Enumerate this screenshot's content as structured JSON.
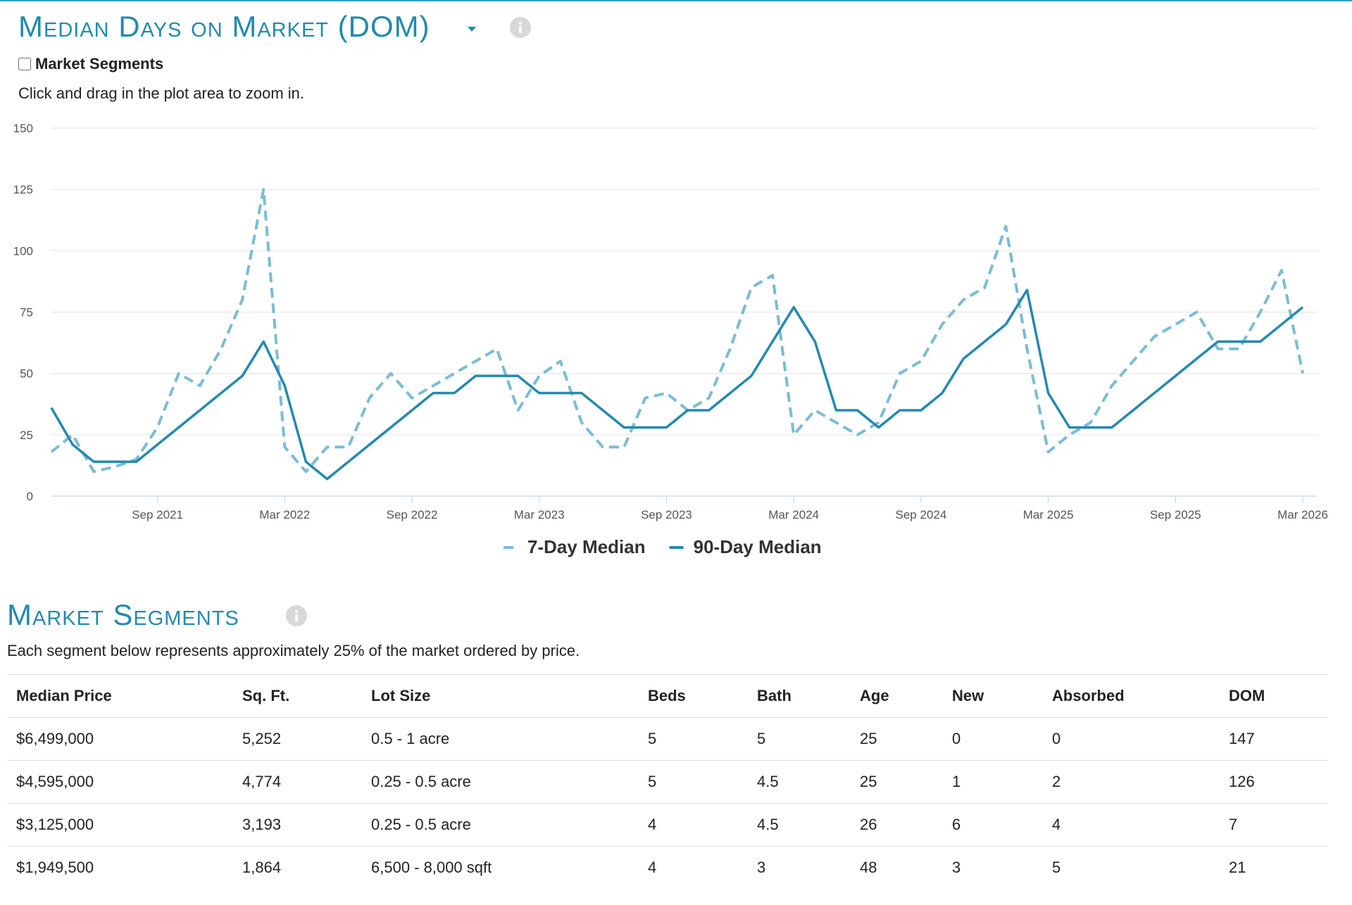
{
  "header": {
    "title": "Median Days on Market (DOM)",
    "checkbox_label": "Market Segments",
    "instruction": "Click and drag in the plot area to zoom in."
  },
  "chart_data": {
    "type": "line",
    "x": [
      "2021-04",
      "2021-05",
      "2021-06",
      "2021-07",
      "2021-08",
      "2021-09",
      "2021-10",
      "2021-11",
      "2021-12",
      "2022-01",
      "2022-02",
      "2022-03",
      "2022-04",
      "2022-05",
      "2022-06",
      "2022-07",
      "2022-08",
      "2022-09",
      "2022-10",
      "2022-11",
      "2022-12",
      "2023-01",
      "2023-02",
      "2023-03",
      "2023-04",
      "2023-05",
      "2023-06",
      "2023-07",
      "2023-08",
      "2023-09",
      "2023-10",
      "2023-11",
      "2023-12",
      "2024-01",
      "2024-02",
      "2024-03",
      "2024-04",
      "2024-05",
      "2024-06",
      "2024-07",
      "2024-08",
      "2024-09",
      "2024-10",
      "2024-11",
      "2024-12",
      "2025-01",
      "2025-02",
      "2025-03",
      "2025-04",
      "2025-05",
      "2025-06",
      "2025-07",
      "2025-08",
      "2025-09",
      "2025-10",
      "2025-11",
      "2025-12",
      "2026-01",
      "2026-02",
      "2026-03"
    ],
    "series": [
      {
        "name": "7-Day Median",
        "color": "#7bbcd5",
        "dashed": true,
        "values": [
          18,
          25,
          10,
          12,
          15,
          28,
          50,
          45,
          60,
          80,
          125,
          20,
          10,
          20,
          20,
          40,
          50,
          40,
          45,
          50,
          55,
          60,
          35,
          49,
          55,
          30,
          20,
          20,
          40,
          42,
          35,
          40,
          60,
          85,
          90,
          25,
          35,
          30,
          25,
          30,
          50,
          55,
          70,
          80,
          85,
          110,
          60,
          18,
          25,
          30,
          45,
          55,
          65,
          70,
          75,
          60,
          60,
          75,
          92,
          50
        ]
      },
      {
        "name": "90-Day Median",
        "color": "#2389b0",
        "dashed": false,
        "values": [
          36,
          21,
          14,
          14,
          14,
          21,
          28,
          35,
          42,
          49,
          63,
          45,
          14,
          7,
          14,
          21,
          28,
          35,
          42,
          42,
          49,
          49,
          49,
          42,
          42,
          42,
          35,
          28,
          28,
          28,
          35,
          35,
          42,
          49,
          63,
          77,
          63,
          35,
          35,
          28,
          35,
          35,
          42,
          56,
          63,
          70,
          84,
          42,
          28,
          28,
          28,
          35,
          42,
          49,
          56,
          63,
          63,
          63,
          70,
          77
        ]
      }
    ],
    "ylim": [
      0,
      150
    ],
    "yticks": [
      0,
      25,
      50,
      75,
      100,
      125,
      150
    ],
    "xticks": [
      {
        "value": "2021-09",
        "label": "Sep 2021"
      },
      {
        "value": "2022-03",
        "label": "Mar 2022"
      },
      {
        "value": "2022-09",
        "label": "Sep 2022"
      },
      {
        "value": "2023-03",
        "label": "Mar 2023"
      },
      {
        "value": "2023-09",
        "label": "Sep 2023"
      },
      {
        "value": "2024-03",
        "label": "Mar 2024"
      },
      {
        "value": "2024-09",
        "label": "Sep 2024"
      },
      {
        "value": "2025-03",
        "label": "Mar 2025"
      },
      {
        "value": "2025-09",
        "label": "Sep 2025"
      },
      {
        "value": "2026-03",
        "label": "Mar 2026"
      }
    ],
    "grid": true
  },
  "segments": {
    "title": "Market Segments",
    "description": "Each segment below represents approximately 25% of the market ordered by price.",
    "table": {
      "headers": [
        "Median Price",
        "Sq. Ft.",
        "Lot Size",
        "Beds",
        "Bath",
        "Age",
        "New",
        "Absorbed",
        "DOM"
      ],
      "rows": [
        [
          "$6,499,000",
          "5,252",
          "0.5 - 1 acre",
          "5",
          "5",
          "25",
          "0",
          "0",
          "147"
        ],
        [
          "$4,595,000",
          "4,774",
          "0.25 - 0.5 acre",
          "5",
          "4.5",
          "25",
          "1",
          "2",
          "126"
        ],
        [
          "$3,125,000",
          "3,193",
          "0.25 - 0.5 acre",
          "4",
          "4.5",
          "26",
          "6",
          "4",
          "7"
        ],
        [
          "$1,949,500",
          "1,864",
          "6,500 - 8,000 sqft",
          "4",
          "3",
          "48",
          "3",
          "5",
          "21"
        ]
      ]
    }
  }
}
